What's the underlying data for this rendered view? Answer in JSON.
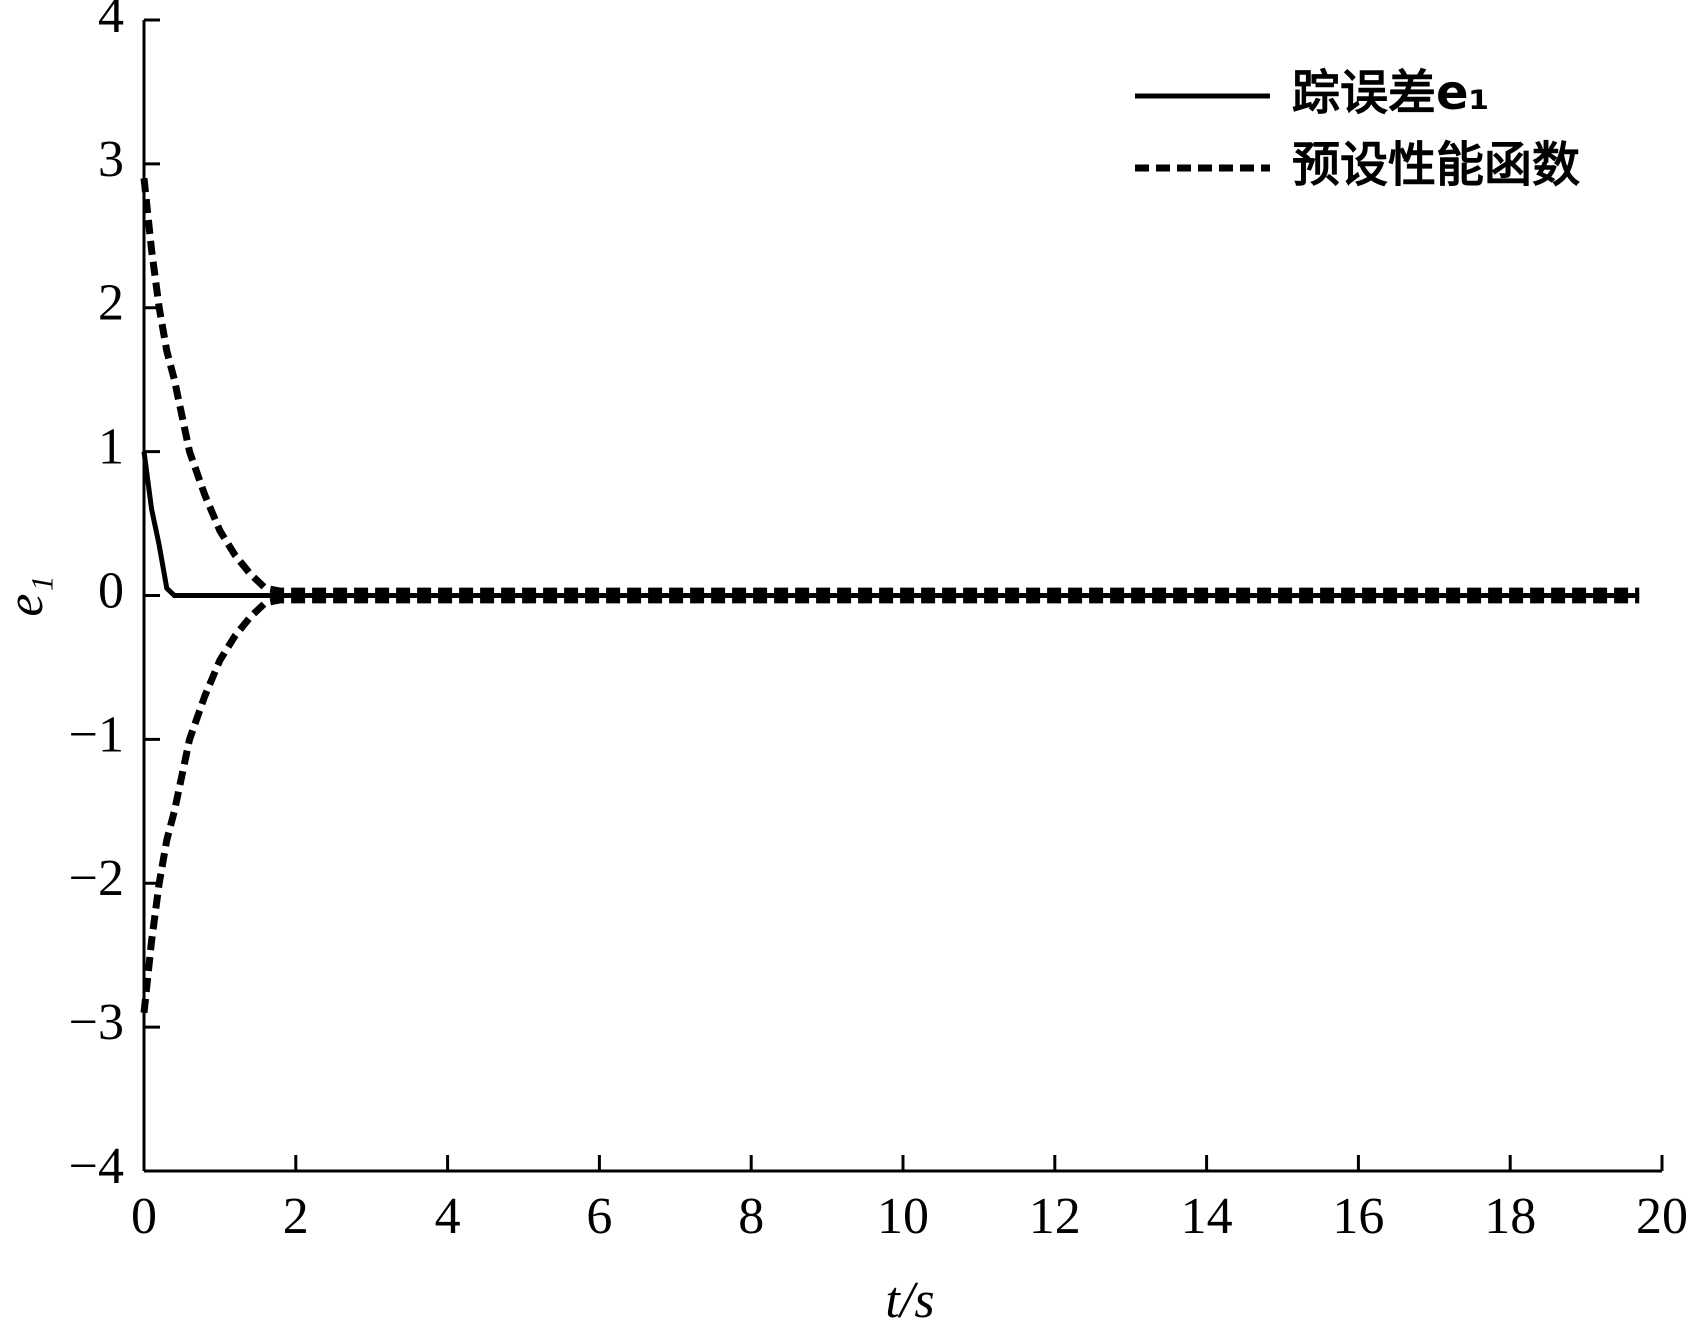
{
  "chart_data": {
    "type": "line",
    "x": [
      0,
      0.1,
      0.2,
      0.3,
      0.4,
      0.6,
      0.8,
      1.0,
      1.2,
      1.4,
      1.6,
      1.8,
      2,
      4,
      6,
      8,
      10,
      12,
      14,
      16,
      18,
      19.7
    ],
    "series": [
      {
        "name": "踪误差e₁",
        "color": "#000000",
        "style": "solid",
        "values": [
          1.0,
          0.6,
          0.35,
          0.05,
          0,
          0,
          0,
          0,
          0,
          0,
          0,
          0,
          0,
          0,
          0,
          0,
          0,
          0,
          0,
          0,
          0,
          0
        ]
      },
      {
        "name": "预设性能函数",
        "color": "#000000",
        "style": "dashed",
        "values": [
          2.9,
          2.4,
          2.0,
          1.7,
          1.5,
          1.0,
          0.7,
          0.45,
          0.28,
          0.15,
          0.05,
          0.03,
          0.03,
          0.03,
          0.03,
          0.03,
          0.03,
          0.03,
          0.03,
          0.03,
          0.03,
          0.03
        ]
      },
      {
        "color": "#000000",
        "style": "dashed",
        "values": [
          -2.9,
          -2.4,
          -2.0,
          -1.7,
          -1.5,
          -1.0,
          -0.7,
          -0.45,
          -0.28,
          -0.15,
          -0.05,
          -0.03,
          -0.03,
          -0.03,
          -0.03,
          -0.03,
          -0.03,
          -0.03,
          -0.03,
          -0.03,
          -0.03,
          -0.03
        ]
      }
    ],
    "xlabel": "t/s",
    "ylabel": "e₁",
    "xlim": [
      0,
      20
    ],
    "xticks": [
      0,
      2,
      4,
      6,
      8,
      10,
      12,
      14,
      16,
      18,
      20
    ],
    "ylim": [
      -4,
      4
    ],
    "yticks": [
      {
        "value": -4,
        "label": "−4"
      },
      {
        "value": -3,
        "label": "−3"
      },
      {
        "value": -2,
        "label": "−2"
      },
      {
        "value": -1,
        "label": "−1"
      },
      0,
      1,
      2,
      3,
      4
    ],
    "legend": "upper right"
  }
}
